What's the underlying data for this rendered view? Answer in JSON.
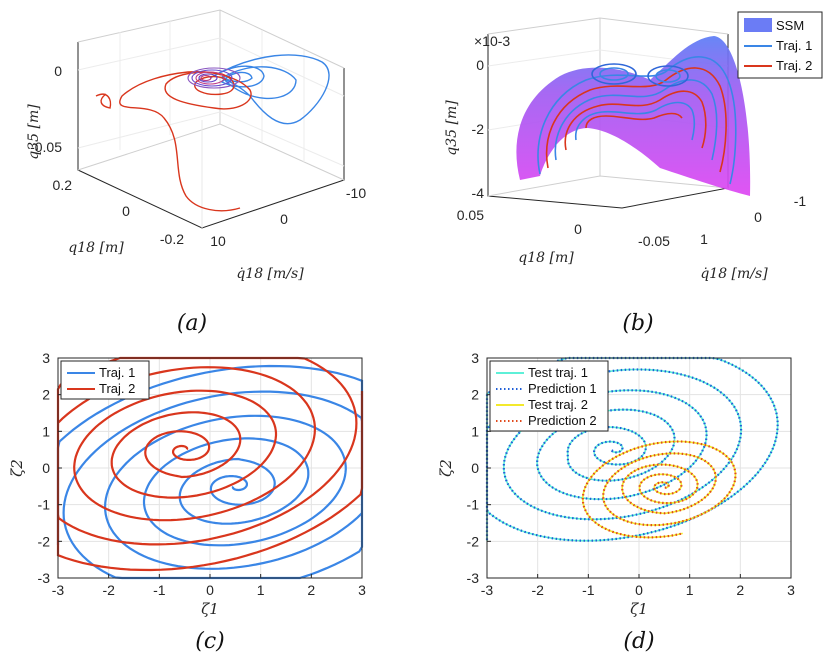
{
  "panels": {
    "a": {
      "caption": "(a)",
      "zlabel": "q35 [m]",
      "xlabel": "q18 [m]",
      "ylabel": "q̇18 [m/s]",
      "zticks": [
        "0",
        "-0.05"
      ],
      "xticks": [
        "0.2",
        "0",
        "-0.2"
      ],
      "yticks": [
        "-10",
        "0",
        "10"
      ]
    },
    "b": {
      "caption": "(b)",
      "exponent": "×10-3",
      "zlabel": "q35 [m]",
      "xlabel": "q18 [m]",
      "ylabel": "q̇18 [m/s]",
      "zticks": [
        "0",
        "-2",
        "-4"
      ],
      "xticks": [
        "0.05",
        "0",
        "-0.05"
      ],
      "yticks": [
        "-1",
        "0",
        "1"
      ],
      "legend": [
        "SSM",
        "Traj. 1",
        "Traj. 2"
      ]
    }
  },
  "colors": {
    "traj1": "#3a86e6",
    "traj2": "#d9361d",
    "ssm": "#c44af0",
    "test1": "#5ef0d8",
    "pred1": "#1f5fd8",
    "test2": "#f3e92c",
    "pred2": "#e14a1c"
  },
  "chart_data": [
    {
      "panel": "c",
      "type": "line",
      "caption": "(c)",
      "xlabel": "ζ1",
      "ylabel": "ζ2",
      "xlim": [
        -3,
        3
      ],
      "ylim": [
        -3,
        3
      ],
      "xticks": [
        "-3",
        "-2",
        "-1",
        "0",
        "1",
        "2",
        "3"
      ],
      "yticks": [
        "3",
        "2",
        "1",
        "0",
        "-1",
        "-2",
        "-3"
      ],
      "grid": true,
      "legend_position": "top-left",
      "series": [
        {
          "name": "Traj. 1",
          "center": [
            0.5,
            -0.5
          ],
          "spiral_to": [
            -3.0,
            -1.4
          ]
        },
        {
          "name": "Traj. 2",
          "center": [
            -0.5,
            0.5
          ],
          "spiral_to": [
            3.0,
            1.4
          ]
        }
      ]
    },
    {
      "panel": "d",
      "type": "line",
      "caption": "(d)",
      "xlabel": "ζ1",
      "ylabel": "ζ2",
      "xlim": [
        -3,
        3
      ],
      "ylim": [
        -3,
        3
      ],
      "xticks": [
        "-3",
        "-2",
        "-1",
        "0",
        "1",
        "2",
        "3"
      ],
      "yticks": [
        "3",
        "2",
        "1",
        "0",
        "-1",
        "-2",
        "-3"
      ],
      "grid": true,
      "legend_position": "top-left",
      "series": [
        {
          "name": "Test traj. 1",
          "center": [
            -0.5,
            0.5
          ],
          "spiral_to": [
            -2.8,
            -1.6
          ]
        },
        {
          "name": "Prediction 1",
          "center": [
            -0.5,
            0.5
          ],
          "spiral_to": [
            -2.8,
            -1.6
          ]
        },
        {
          "name": "Test traj. 2",
          "center": [
            0.5,
            -0.5
          ],
          "spiral_to": [
            0.8,
            -1.9
          ]
        },
        {
          "name": "Prediction 2",
          "center": [
            0.5,
            -0.5
          ],
          "spiral_to": [
            0.8,
            -1.9
          ]
        }
      ]
    }
  ]
}
